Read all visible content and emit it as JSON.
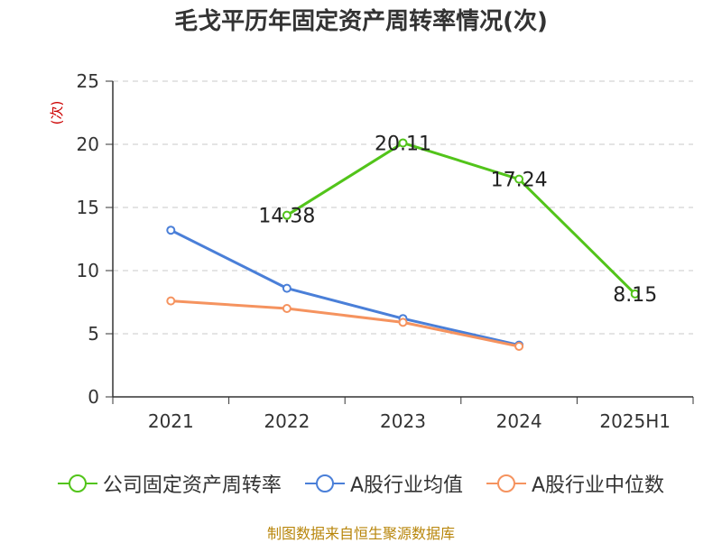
{
  "title": "毛戈平历年固定资产周转率情况(次)",
  "source": "制图数据来自恒生聚源数据库",
  "chart_data": {
    "type": "line",
    "title": "毛戈平历年固定资产周转率情况(次)",
    "xlabel": "",
    "ylabel": "(次)",
    "categories": [
      "2021",
      "2022",
      "2023",
      "2024",
      "2025H1"
    ],
    "ylim": [
      0,
      25
    ],
    "yticks": [
      0,
      5,
      10,
      15,
      20,
      25
    ],
    "grid": true,
    "legend_position": "bottom",
    "ylabel_color": "#cc0000",
    "series": [
      {
        "name": "公司固定资产周转率",
        "color": "#52c41a",
        "values": [
          null,
          14.38,
          20.11,
          17.24,
          8.15
        ],
        "labels": [
          null,
          "14.38",
          "20.11",
          "17.24",
          "8.15"
        ]
      },
      {
        "name": "A股行业均值",
        "color": "#4a7fd8",
        "values": [
          13.2,
          8.6,
          6.2,
          4.1,
          null
        ]
      },
      {
        "name": "A股行业中位数",
        "color": "#f5935f",
        "values": [
          7.6,
          7.0,
          5.9,
          4.0,
          null
        ]
      }
    ]
  }
}
